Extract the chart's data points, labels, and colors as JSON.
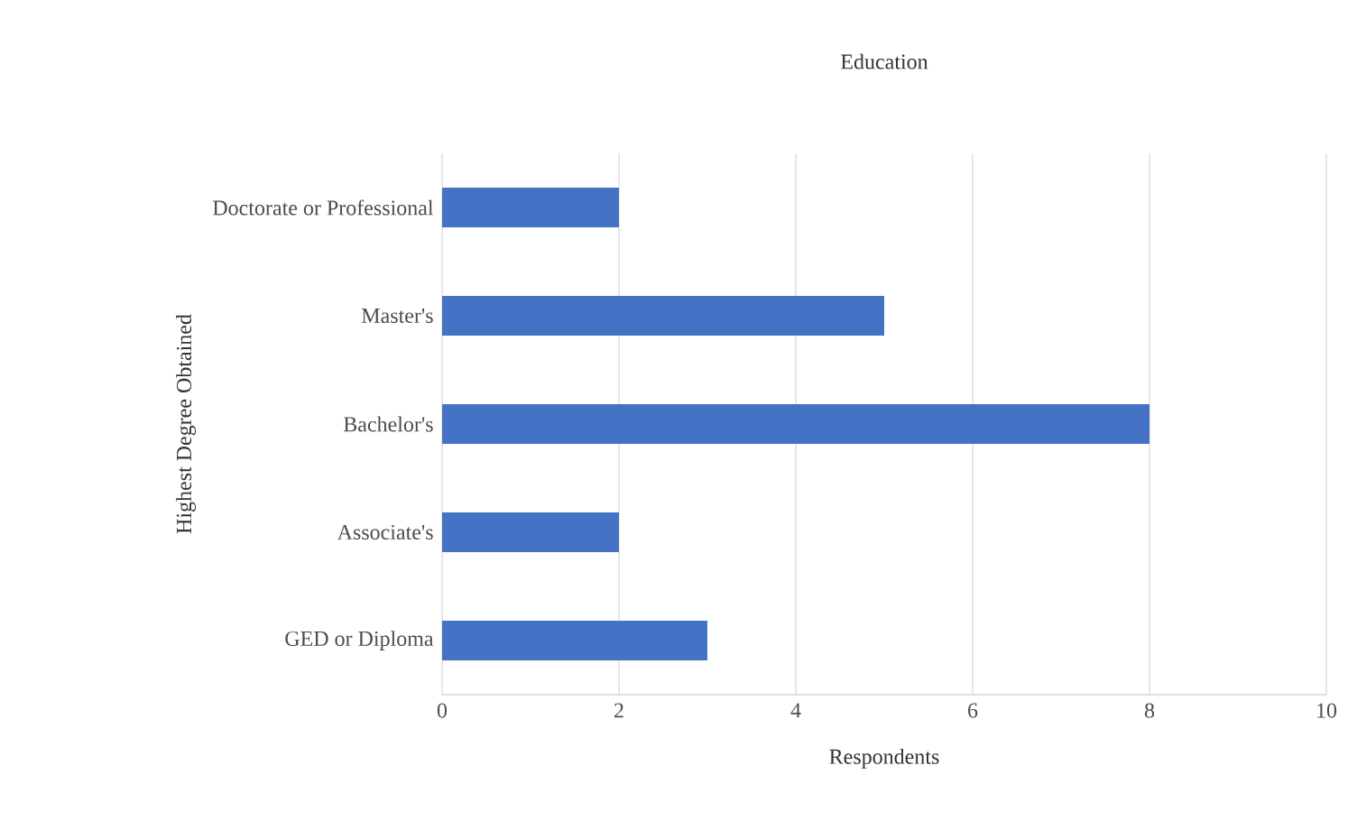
{
  "chart_data": {
    "type": "bar",
    "orientation": "horizontal",
    "title": "Education",
    "xlabel": "Respondents",
    "ylabel": "Highest Degree Obtained",
    "categories": [
      "Doctorate or Professional",
      "Master's",
      "Bachelor's",
      "Associate's",
      "GED or Diploma"
    ],
    "values": [
      2,
      5,
      8,
      2,
      3
    ],
    "color": "#4472c4",
    "xlim": [
      0,
      10
    ],
    "xticks": [
      0,
      2,
      4,
      6,
      8,
      10
    ],
    "grid": "x"
  }
}
